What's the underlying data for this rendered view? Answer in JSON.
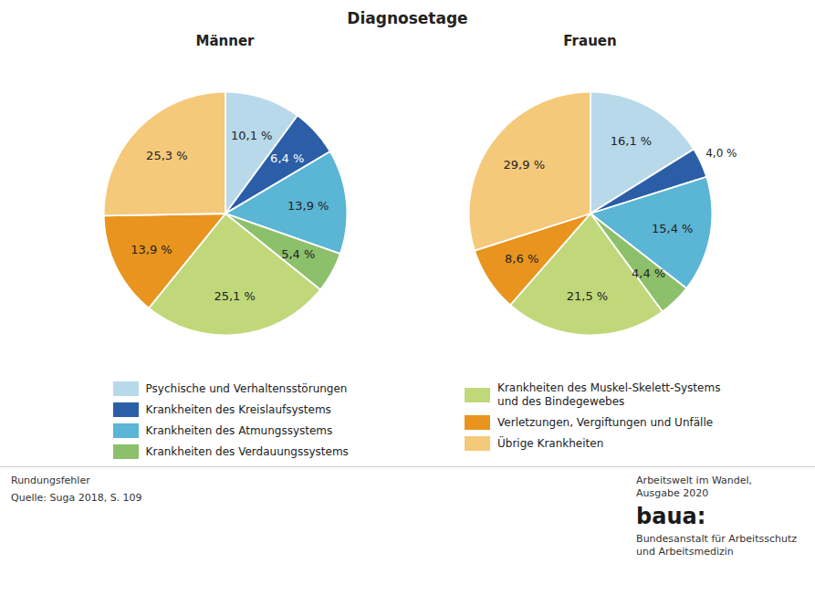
{
  "title": "Diagnosetage",
  "chart_data": [
    {
      "type": "pie",
      "title": "Männer",
      "categories": [
        "Psychische und Verhaltensstörungen",
        "Krankheiten des Kreislaufsystems",
        "Krankheiten des Atmungssystems",
        "Krankheiten des Verdauungssystems",
        "Krankheiten des Muskel-Skelett-Systems\nund des Bindegewebes",
        "Verletzungen, Vergiftungen und Unfälle",
        "Übrige Krankheiten"
      ],
      "values": [
        10.1,
        6.4,
        13.9,
        5.4,
        25.1,
        13.9,
        25.3
      ],
      "value_labels": [
        "10,1 %",
        "6,4 %",
        "13,9 %",
        "5,4 %",
        "25,1 %",
        "13,9 %",
        "25,3 %"
      ],
      "colors": [
        "#b8d9ea",
        "#2b5ea7",
        "#5bb5d5",
        "#8dc06a",
        "#c0d87a",
        "#e8941e",
        "#f5c97a"
      ],
      "data_labels": true,
      "legend": "bottom"
    },
    {
      "type": "pie",
      "title": "Frauen",
      "categories": [
        "Psychische und Verhaltensstörungen",
        "Krankheiten des Kreislaufsystems",
        "Krankheiten des Atmungssystems",
        "Krankheiten des Verdauungssystems",
        "Krankheiten des Muskel-Skelett-Systems\nund des Bindegewebes",
        "Verletzungen, Vergiftungen und Unfälle",
        "Übrige Krankheiten"
      ],
      "values": [
        16.1,
        4.0,
        15.4,
        4.4,
        21.5,
        8.6,
        29.9
      ],
      "value_labels": [
        "16,1 %",
        "4,0 %",
        "15,4 %",
        "4,4 %",
        "21,5 %",
        "8,6 %",
        "29,9 %"
      ],
      "colors": [
        "#b8d9ea",
        "#2b5ea7",
        "#5bb5d5",
        "#8dc06a",
        "#c0d87a",
        "#e8941e",
        "#f5c97a"
      ],
      "data_labels": true,
      "legend": "bottom"
    }
  ],
  "annotations": [
    "Rundungsfehler",
    "Quelle: Suga 2018, S. 109",
    "Arbeitswelt im Wandel,\nAusgabe 2020",
    "baua:",
    "Bundesanstalt für Arbeitsschutz\nund Arbeitsmedizin"
  ]
}
